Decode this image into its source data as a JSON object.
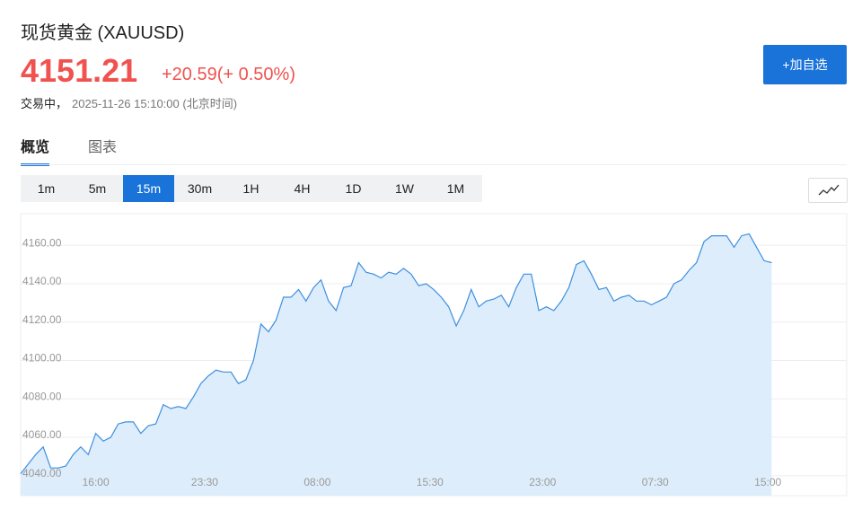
{
  "header": {
    "title": "现货黄金 (XAUUSD)",
    "price": "4151.21",
    "change": "+20.59(+ 0.50%)",
    "status": "交易中，",
    "timestamp": "2025-11-26 15:10:00 (北京时间)",
    "button": "+加自选"
  },
  "tabs": [
    "概览",
    "图表"
  ],
  "intervals": [
    "1m",
    "5m",
    "15m",
    "30m",
    "1H",
    "4H",
    "1D",
    "1W",
    "1M"
  ],
  "active_interval": 2,
  "chart_data": {
    "type": "area",
    "color": "#3d8fe0",
    "fill": "#deedfb",
    "grid": true,
    "values": [
      4041,
      4046,
      4051,
      4055,
      4044,
      4044,
      4045,
      4051,
      4055,
      4051,
      4062,
      4058,
      4060,
      4067,
      4068,
      4068,
      4062,
      4066,
      4067,
      4077,
      4075,
      4076,
      4075,
      4081,
      4088,
      4092,
      4095,
      4094,
      4094,
      4088,
      4090,
      4100,
      4119,
      4115,
      4121,
      4133,
      4133,
      4137,
      4131,
      4138,
      4142,
      4131,
      4126,
      4138,
      4139,
      4151,
      4146,
      4145,
      4143,
      4146,
      4145,
      4148,
      4145,
      4139,
      4140,
      4137,
      4133,
      4128,
      4118,
      4126,
      4137,
      4128,
      4131,
      4132,
      4134,
      4128,
      4138,
      4145,
      4145,
      4126,
      4128,
      4126,
      4131,
      4138,
      4150,
      4152,
      4145,
      4137,
      4138,
      4131,
      4133,
      4134,
      4131,
      4131,
      4129,
      4131,
      4133,
      4140,
      4142,
      4147,
      4151,
      4162,
      4165,
      4165,
      4165,
      4159,
      4165,
      4166,
      4159,
      4152,
      4151
    ],
    "xlim": [
      0,
      110
    ],
    "xticks": [
      {
        "value": 10,
        "label": "16:00"
      },
      {
        "value": 24.5,
        "label": "23:30"
      },
      {
        "value": 39.5,
        "label": "08:00"
      },
      {
        "value": 54.5,
        "label": "15:30"
      },
      {
        "value": 69.5,
        "label": "23:00"
      },
      {
        "value": 84.5,
        "label": "07:30"
      },
      {
        "value": 99.5,
        "label": "15:00"
      }
    ],
    "ylim": [
      4029.6,
      4176.5
    ],
    "yticks": [
      {
        "value": 4040,
        "label": "4040.00"
      },
      {
        "value": 4060,
        "label": "4060.00"
      },
      {
        "value": 4080,
        "label": "4080.00"
      },
      {
        "value": 4100,
        "label": "4100.00"
      },
      {
        "value": 4120,
        "label": "4120.00"
      },
      {
        "value": 4140,
        "label": "4140.00"
      },
      {
        "value": 4160,
        "label": "4160.00"
      }
    ]
  }
}
